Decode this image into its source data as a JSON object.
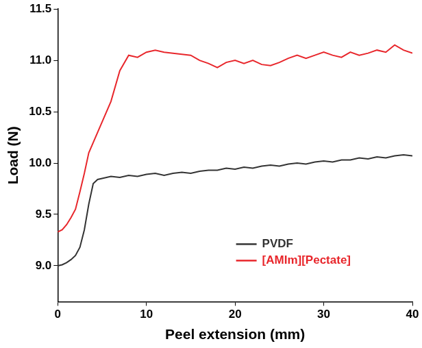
{
  "chart_data": {
    "type": "line",
    "x_label": "Peel extension (mm)",
    "y_label": "Load (N)",
    "x": [
      0,
      0.5,
      1,
      1.5,
      2,
      2.5,
      3,
      3.5,
      4,
      4.5,
      5,
      6,
      7,
      8,
      9,
      10,
      11,
      12,
      13,
      14,
      15,
      16,
      17,
      18,
      19,
      20,
      21,
      22,
      23,
      24,
      25,
      26,
      27,
      28,
      29,
      30,
      31,
      32,
      33,
      34,
      35,
      36,
      37,
      38,
      39,
      40
    ],
    "series": [
      {
        "name": "PVDF",
        "color": "#333333",
        "values": [
          9.0,
          9.01,
          9.03,
          9.06,
          9.1,
          9.18,
          9.35,
          9.6,
          9.8,
          9.84,
          9.85,
          9.87,
          9.86,
          9.88,
          9.87,
          9.89,
          9.9,
          9.88,
          9.9,
          9.91,
          9.9,
          9.92,
          9.93,
          9.93,
          9.95,
          9.94,
          9.96,
          9.95,
          9.97,
          9.98,
          9.97,
          9.99,
          10.0,
          9.99,
          10.01,
          10.02,
          10.01,
          10.03,
          10.03,
          10.05,
          10.04,
          10.06,
          10.05,
          10.07,
          10.08,
          10.07
        ]
      },
      {
        "name": "[AMIm][Pectate]",
        "color": "#e8262b",
        "values": [
          9.33,
          9.35,
          9.4,
          9.47,
          9.55,
          9.72,
          9.9,
          10.1,
          10.2,
          10.3,
          10.4,
          10.6,
          10.9,
          11.05,
          11.03,
          11.08,
          11.1,
          11.08,
          11.07,
          11.06,
          11.05,
          11.0,
          10.97,
          10.93,
          10.98,
          11.0,
          10.97,
          11.0,
          10.96,
          10.95,
          10.98,
          11.02,
          11.05,
          11.02,
          11.05,
          11.08,
          11.05,
          11.03,
          11.08,
          11.05,
          11.07,
          11.1,
          11.08,
          11.15,
          11.1,
          11.07
        ]
      }
    ],
    "xlim": [
      0,
      40
    ],
    "xticks": [
      0,
      10,
      20,
      30,
      40
    ],
    "ylim": [
      8.65,
      11.5
    ],
    "yticks": [
      {
        "value": 9.0,
        "label": "9.0"
      },
      {
        "value": 9.5,
        "label": "9.5"
      },
      {
        "value": 10.0,
        "label": "10.0"
      },
      {
        "value": 10.5,
        "label": "10.5"
      },
      {
        "value": 11.0,
        "label": "11.0"
      },
      {
        "value": 11.5,
        "label": "11.5"
      }
    ],
    "grid": false,
    "legend": "lower right"
  }
}
